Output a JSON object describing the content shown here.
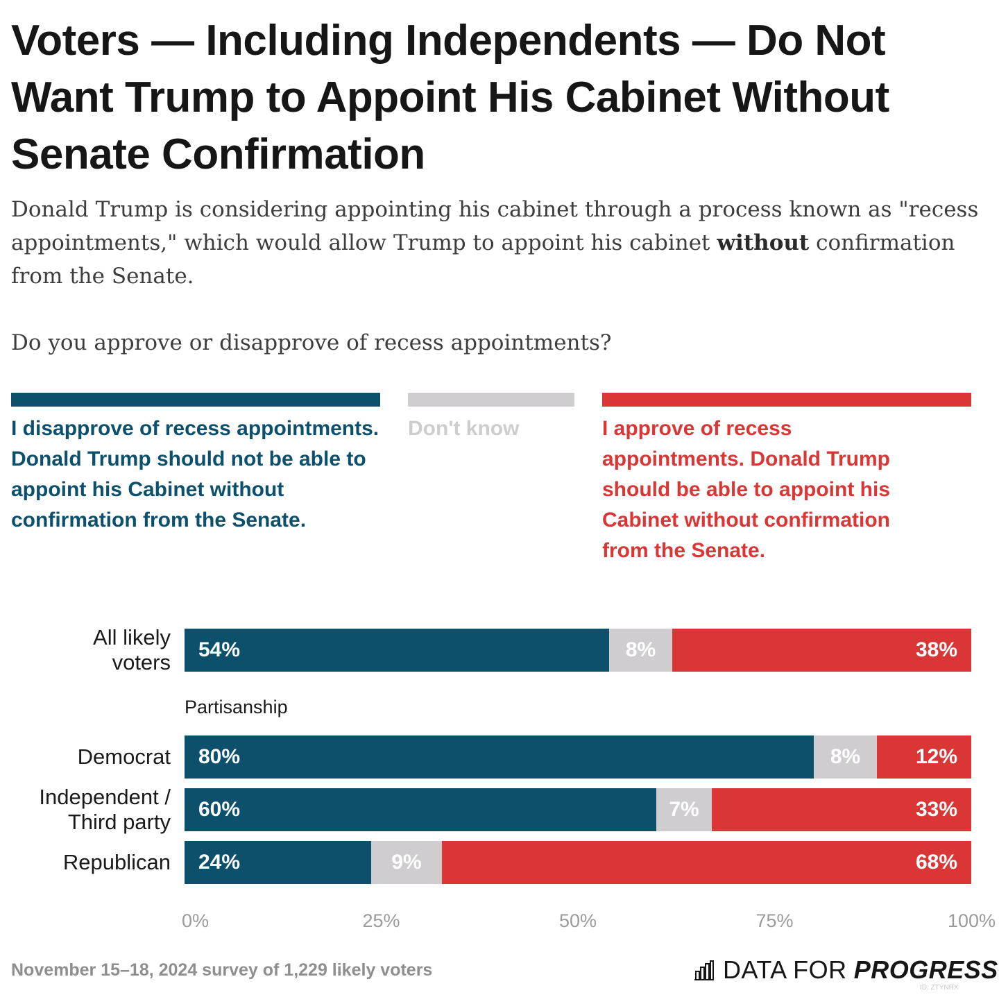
{
  "title": "Voters — Including Independents — Do Not Want Trump to Appoint His Cabinet Without Senate Confirmation",
  "subtitle": {
    "part1": "Donald Trump is considering appointing his cabinet through a process known as \"recess appointments,\" which would allow Trump to appoint his cabinet ",
    "bold": "without",
    "part2": " confirmation from the Senate."
  },
  "question": "Do you approve or disapprove of recess appointments?",
  "colors": {
    "disapprove": "#0d506c",
    "dont_know": "#d0cdd1",
    "approve": "#da3636"
  },
  "chart_data": {
    "type": "bar",
    "orientation": "horizontal",
    "stacked": true,
    "xlim": [
      0,
      100
    ],
    "x_ticks": [
      "0%",
      "25%",
      "50%",
      "75%",
      "100%"
    ],
    "series": [
      {
        "name": "I disapprove of recess appointments. Donald Trump should not be able to appoint his Cabinet without confirmation from the Senate.",
        "color": "#0d506c"
      },
      {
        "name": "Don't know",
        "color": "#d0cdd1"
      },
      {
        "name": "I approve of recess appointments. Donald Trump should be able to appoint his Cabinet without confirmation from the Senate.",
        "color": "#da3636"
      }
    ],
    "groups": [
      {
        "label": "",
        "rows": [
          {
            "category": "All likely voters",
            "values": [
              54,
              8,
              38
            ],
            "labels": [
              "54%",
              "8%",
              "38%"
            ]
          }
        ]
      },
      {
        "label": "Partisanship",
        "rows": [
          {
            "category": "Democrat",
            "values": [
              80,
              8,
              12
            ],
            "labels": [
              "80%",
              "8%",
              "12%"
            ]
          },
          {
            "category": "Independent / Third party",
            "values": [
              60,
              7,
              33
            ],
            "labels": [
              "60%",
              "7%",
              "33%"
            ]
          },
          {
            "category": "Republican",
            "values": [
              24,
              9,
              68
            ],
            "labels": [
              "24%",
              "9%",
              "68%"
            ]
          }
        ]
      }
    ]
  },
  "category_lines": {
    "all": [
      "All likely",
      "voters"
    ],
    "democrat": [
      "Democrat"
    ],
    "independent": [
      "Independent /",
      "Third party"
    ],
    "republican": [
      "Republican"
    ]
  },
  "footer": "November 15–18, 2024 survey of 1,229 likely voters",
  "logo": {
    "word1": "DATA FOR",
    "word2": "PROGRESS",
    "id": "ID: ZTYNRX",
    "icon": "bar-chart-icon"
  }
}
